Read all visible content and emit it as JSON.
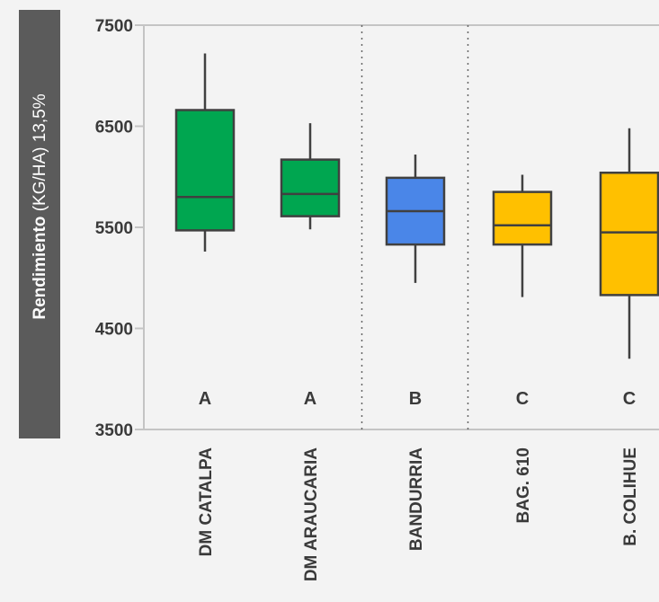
{
  "chart_data": {
    "type": "box",
    "ylabel_bold": "Rendimiento",
    "ylabel_rest": " (KG/HA) 13,5%",
    "ylim": [
      3500,
      7500
    ],
    "yticks": [
      7500,
      6500,
      5500,
      4500,
      3500
    ],
    "categories": [
      "DM CATALPA",
      "DM ARAUCARIA",
      "BANDURRIA",
      "BAG. 610",
      "B. COLIHUE"
    ],
    "groups": [
      "A",
      "A",
      "B",
      "C",
      "C"
    ],
    "boxes": [
      {
        "min": 5260,
        "q1": 5470,
        "median": 5800,
        "q3": 6660,
        "max": 7220,
        "color": "#00a650"
      },
      {
        "min": 5480,
        "q1": 5610,
        "median": 5830,
        "q3": 6170,
        "max": 6530,
        "color": "#00a650"
      },
      {
        "min": 4950,
        "q1": 5330,
        "median": 5660,
        "q3": 5990,
        "max": 6220,
        "color": "#4a86e8"
      },
      {
        "min": 4810,
        "q1": 5330,
        "median": 5520,
        "q3": 5850,
        "max": 6020,
        "color": "#ffc000"
      },
      {
        "min": 4200,
        "q1": 4830,
        "median": 5450,
        "q3": 6040,
        "max": 6480,
        "color": "#ffc000"
      }
    ],
    "separators_after": [
      2,
      3
    ],
    "grid": false
  },
  "colors": {
    "background": "#f3f3f3",
    "axis": "#c4c4c4",
    "box_stroke": "#404040",
    "ylabel_bg": "#5b5b5b",
    "separator": "#666666"
  }
}
